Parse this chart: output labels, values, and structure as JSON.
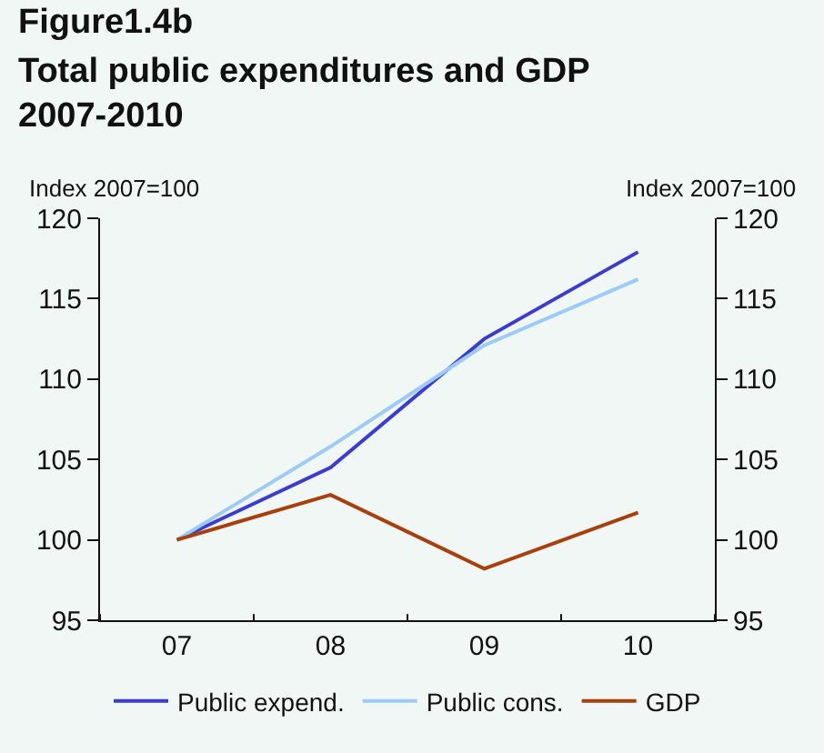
{
  "chart_data": {
    "type": "line",
    "title": "Figure1.4b",
    "subtitle": "Total public expenditures and GDP 2007-2010",
    "ylabel": "Index 2007=100",
    "y2label": "Index 2007=100",
    "categories": [
      "07",
      "08",
      "09",
      "10"
    ],
    "series": [
      {
        "name": "Public expend.",
        "color": "#3c3cd2",
        "values": [
          100,
          104.5,
          112.5,
          117.9
        ]
      },
      {
        "name": "Public cons.",
        "color": "#9ccbf7",
        "values": [
          100,
          105.8,
          112.1,
          116.2
        ]
      },
      {
        "name": "GDP",
        "color": "#a8400e",
        "values": [
          100,
          102.8,
          98.2,
          101.7
        ]
      }
    ],
    "ylim": [
      95,
      120
    ],
    "yticks": [
      95,
      100,
      105,
      110,
      115,
      120
    ],
    "y2lim": [
      95,
      120
    ],
    "y2ticks": [
      95,
      100,
      105,
      110,
      115,
      120
    ],
    "grid": false,
    "legend": "bottom",
    "marker": "none",
    "line_style": "solid"
  }
}
